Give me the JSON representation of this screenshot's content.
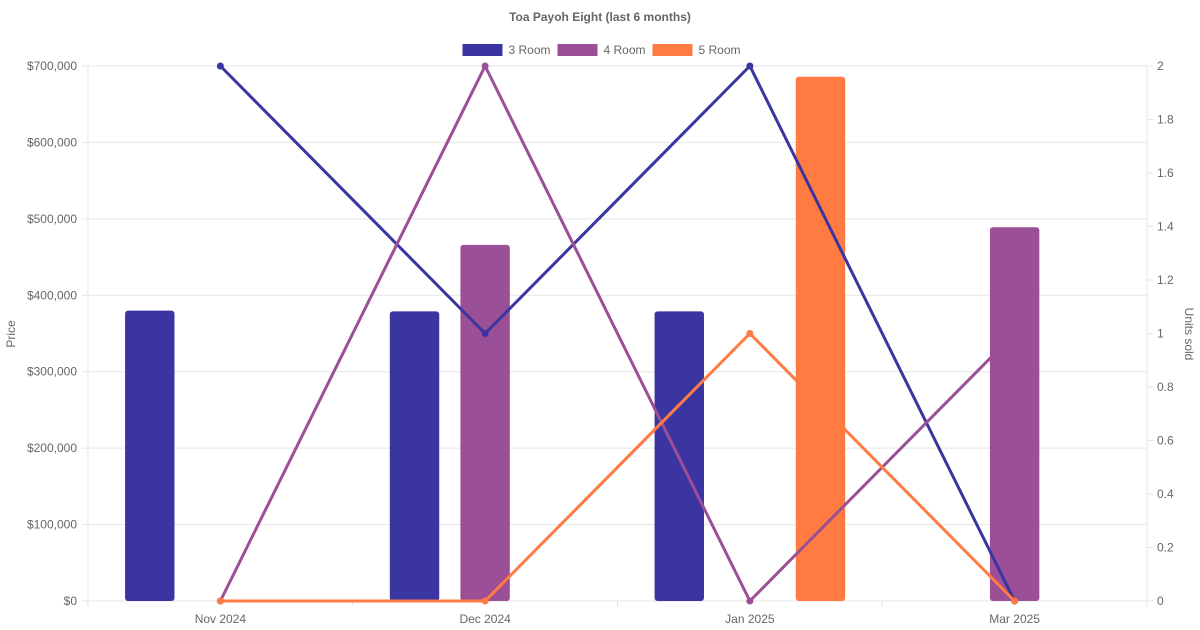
{
  "chart_data": {
    "type": "bar",
    "title": "Toa Payoh Eight (last 6 months)",
    "categories": [
      "Nov 2024",
      "Dec 2024",
      "Jan 2025",
      "Mar 2025"
    ],
    "y_left": {
      "label": "Price",
      "range": [
        0,
        700000
      ],
      "ticks": [
        "$0",
        "$100,000",
        "$200,000",
        "$300,000",
        "$400,000",
        "$500,000",
        "$600,000",
        "$700,000"
      ]
    },
    "y_right": {
      "label": "Units sold",
      "range": [
        0,
        2
      ],
      "ticks": [
        "0",
        "0.2",
        "0.4",
        "0.6",
        "0.8",
        "1",
        "1.2",
        "1.4",
        "1.6",
        "1.8",
        "2"
      ]
    },
    "grid": true,
    "legend_position": "top-center",
    "series": [
      {
        "name": "3 Room",
        "color": "#3a35a1",
        "price": [
          380000,
          379000,
          379000,
          null
        ],
        "units": [
          2,
          1,
          2,
          0
        ]
      },
      {
        "name": "4 Room",
        "color": "#9b4f96",
        "price": [
          null,
          466000,
          null,
          489000
        ],
        "units": [
          0,
          2,
          0,
          1
        ]
      },
      {
        "name": "5 Room",
        "color": "#ff7b42",
        "price": [
          null,
          null,
          686000,
          null
        ],
        "units": [
          0,
          0,
          1,
          0
        ]
      }
    ]
  }
}
